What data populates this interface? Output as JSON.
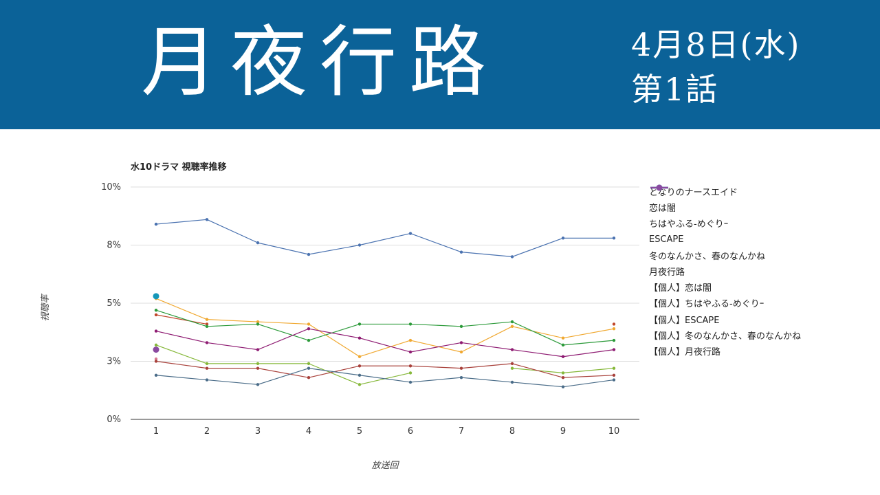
{
  "header": {
    "title": "月夜行路",
    "date": "4月8日(水)",
    "episode": "第1話"
  },
  "colors": {
    "banner": "#0b6298"
  },
  "chart_data": {
    "type": "line",
    "title": "水10ドラマ 視聴率推移",
    "xlabel": "放送回",
    "ylabel": "視聴率",
    "ylim": [
      0,
      10
    ],
    "grid": true,
    "legend_position": "right",
    "y_ticks": [
      {
        "value": 0,
        "label": "0%"
      },
      {
        "value": 2.5,
        "label": "3%"
      },
      {
        "value": 5,
        "label": "5%"
      },
      {
        "value": 7.5,
        "label": "8%"
      },
      {
        "value": 10,
        "label": "10%"
      }
    ],
    "categories": [
      "1",
      "2",
      "3",
      "4",
      "5",
      "6",
      "7",
      "8",
      "9",
      "10"
    ],
    "series": [
      {
        "name": "となりのナースエイド",
        "color": "#4a72b0",
        "emphasis": false,
        "values": [
          8.4,
          8.6,
          7.6,
          7.1,
          7.5,
          8.0,
          7.2,
          7.0,
          7.8,
          7.8
        ]
      },
      {
        "name": "恋は闇",
        "color": "#c0462a",
        "emphasis": false,
        "values": [
          4.5,
          4.1,
          null,
          null,
          null,
          null,
          null,
          null,
          null,
          4.1
        ]
      },
      {
        "name": "ちはやふる-めぐりｰ",
        "color": "#f0a830",
        "emphasis": false,
        "values": [
          5.2,
          4.3,
          4.2,
          4.1,
          2.7,
          3.4,
          2.9,
          4.0,
          3.5,
          3.9
        ]
      },
      {
        "name": "ESCAPE",
        "color": "#2c9a3a",
        "emphasis": false,
        "values": [
          4.7,
          4.0,
          4.1,
          3.4,
          4.1,
          4.1,
          4.0,
          4.2,
          3.2,
          3.4
        ]
      },
      {
        "name": "冬のなんかさ、春のなんかね",
        "color": "#8e1b72",
        "emphasis": false,
        "values": [
          3.8,
          3.3,
          3.0,
          3.9,
          3.5,
          2.9,
          3.3,
          3.0,
          2.7,
          3.0
        ]
      },
      {
        "name": "月夜行路",
        "color": "#1597b8",
        "emphasis": true,
        "values": [
          5.3,
          null,
          null,
          null,
          null,
          null,
          null,
          null,
          null,
          null
        ]
      },
      {
        "name": "【個人】恋は闇",
        "color": "#d87a92",
        "emphasis": false,
        "values": [
          2.6,
          null,
          null,
          null,
          null,
          null,
          null,
          null,
          null,
          null
        ]
      },
      {
        "name": "【個人】ちはやふる-めぐりｰ",
        "color": "#86b83a",
        "emphasis": false,
        "values": [
          3.2,
          2.4,
          2.4,
          2.4,
          1.5,
          2.0,
          null,
          2.2,
          2.0,
          2.2
        ]
      },
      {
        "name": "【個人】ESCAPE",
        "color": "#a8403a",
        "emphasis": false,
        "values": [
          2.5,
          2.2,
          2.2,
          1.8,
          2.3,
          2.3,
          2.2,
          2.4,
          1.8,
          1.9
        ]
      },
      {
        "name": "【個人】冬のなんかさ、春のなんかね",
        "color": "#4a6c88",
        "emphasis": false,
        "values": [
          1.9,
          1.7,
          1.5,
          2.2,
          1.9,
          1.6,
          1.8,
          1.6,
          1.4,
          1.7
        ]
      },
      {
        "name": "【個人】月夜行路",
        "color": "#8a4aa0",
        "emphasis": true,
        "values": [
          3.0,
          null,
          null,
          null,
          null,
          null,
          null,
          null,
          null,
          null
        ]
      }
    ]
  }
}
